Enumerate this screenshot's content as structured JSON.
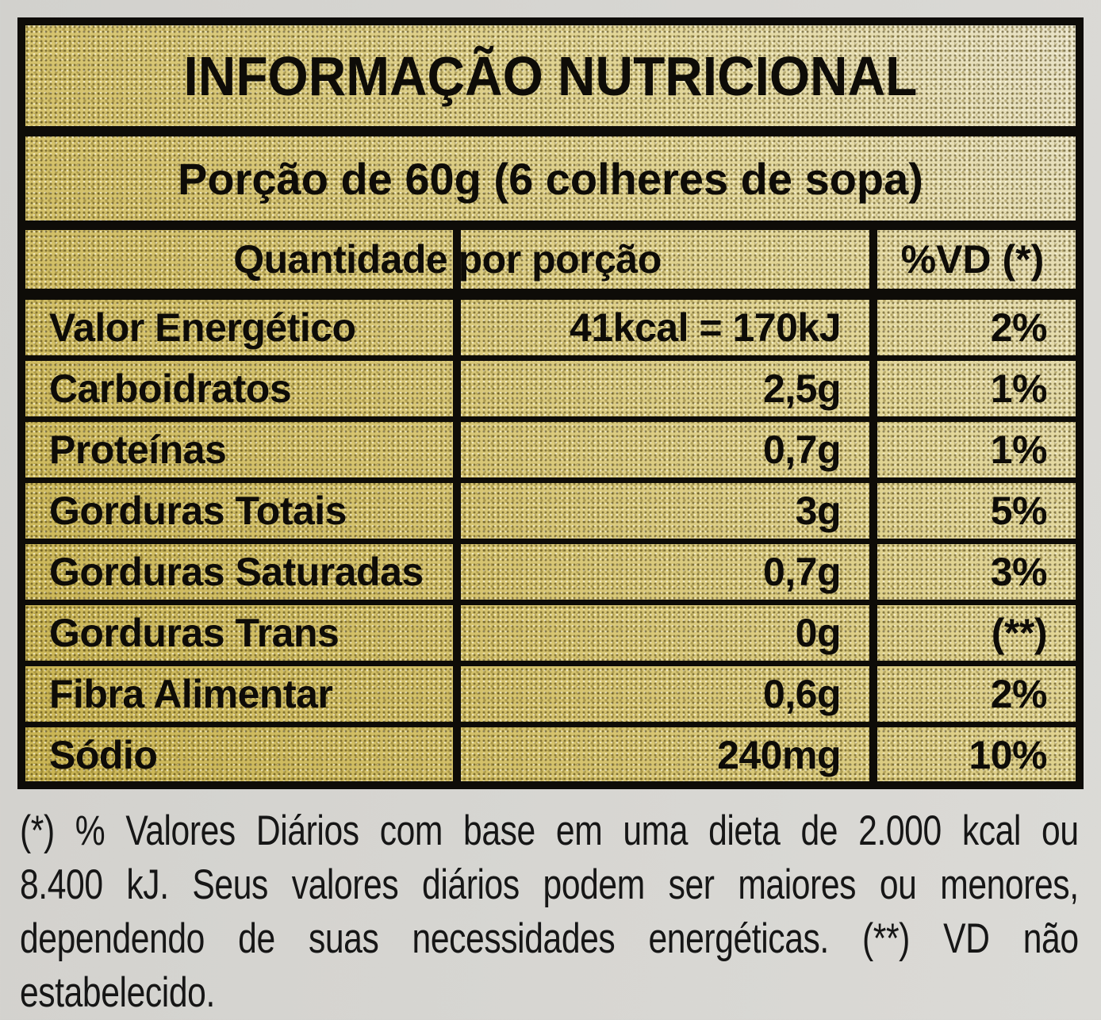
{
  "colors": {
    "page_background": "#d5d4d0",
    "label_gold": "#d9c775",
    "label_gold_dark": "#c9b452",
    "label_gold_light": "#e9e3c9",
    "border_black": "#0e0c08",
    "text_black": "#0e0c08",
    "footnote_text": "#161616"
  },
  "label": {
    "title": "INFORMAÇÃO NUTRICIONAL",
    "serving": "Porção de 60g (6 colheres de sopa)",
    "columns": {
      "quantity": "Quantidade por porção",
      "daily_value": "%VD (*)"
    },
    "rows": [
      {
        "name": "Valor Energético",
        "amount": "41kcal = 170kJ",
        "dv": "2%"
      },
      {
        "name": "Carboidratos",
        "amount": "2,5g",
        "dv": "1%"
      },
      {
        "name": "Proteínas",
        "amount": "0,7g",
        "dv": "1%"
      },
      {
        "name": "Gorduras Totais",
        "amount": "3g",
        "dv": "5%"
      },
      {
        "name": "Gorduras Saturadas",
        "amount": "0,7g",
        "dv": "3%"
      },
      {
        "name": "Gorduras Trans",
        "amount": "0g",
        "dv": "(**)"
      },
      {
        "name": "Fibra Alimentar",
        "amount": "0,6g",
        "dv": "2%"
      },
      {
        "name": "Sódio",
        "amount": "240mg",
        "dv": "10%"
      }
    ],
    "footnote_lines": [
      "(*) % Valores Diários com base em uma dieta de 2.000 kcal ou",
      "8.400 kJ. Seus valores diários podem ser maiores ou menores,",
      "dependendo de suas necessidades energéticas. (**) VD não",
      "estabelecido."
    ]
  }
}
